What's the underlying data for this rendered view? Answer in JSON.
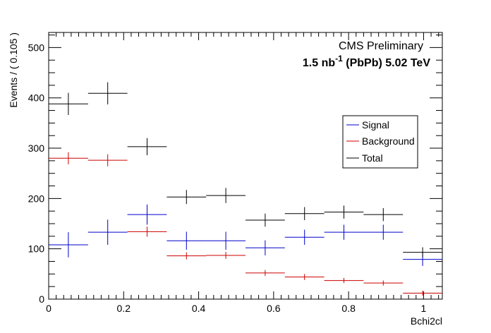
{
  "chart_data": {
    "type": "scatter",
    "xlabel": "Bchi2cl",
    "ylabel": "Events / ( 0.105 )",
    "xlim": [
      0,
      1.05
    ],
    "ylim": [
      0,
      530
    ],
    "x_ticks": [
      "0",
      "0.2",
      "0.4",
      "0.6",
      "0.8",
      "1"
    ],
    "y_ticks": [
      "0",
      "100",
      "200",
      "300",
      "400",
      "500"
    ],
    "bin_width": 0.105,
    "annotations": {
      "experiment": "CMS Preliminary",
      "lumi_prefix": "1.5 nb",
      "lumi_sup": "-1",
      "lumi_suffix": " (PbPb) 5.02 TeV"
    },
    "legend": {
      "placement": "top-right",
      "entries": [
        "Signal",
        "Background",
        "Total"
      ]
    },
    "series": [
      {
        "name": "Signal",
        "color": "#0000cc",
        "x": [
          0.0525,
          0.1575,
          0.2625,
          0.3675,
          0.4725,
          0.5775,
          0.6825,
          0.7875,
          0.8925,
          0.9975
        ],
        "y": [
          108,
          133,
          168,
          116,
          116,
          102,
          123,
          133,
          133,
          79
        ],
        "err": [
          25,
          25,
          20,
          18,
          18,
          15,
          15,
          15,
          15,
          13
        ]
      },
      {
        "name": "Background",
        "color": "#cc0000",
        "x": [
          0.0525,
          0.1575,
          0.2625,
          0.3675,
          0.4725,
          0.5775,
          0.6825,
          0.7875,
          0.8925,
          0.9975
        ],
        "y": [
          280,
          276,
          134,
          86,
          87,
          52,
          44,
          37,
          32,
          12
        ],
        "err": [
          12,
          12,
          10,
          7,
          7,
          6,
          6,
          5,
          5,
          5
        ]
      },
      {
        "name": "Total",
        "color": "#000000",
        "x": [
          0.0525,
          0.1575,
          0.2625,
          0.3675,
          0.4725,
          0.5775,
          0.6825,
          0.7875,
          0.8925,
          0.9975
        ],
        "y": [
          388,
          409,
          303,
          203,
          206,
          157,
          170,
          173,
          168,
          93
        ],
        "err": [
          22,
          22,
          17,
          14,
          15,
          13,
          13,
          13,
          13,
          10
        ]
      }
    ]
  }
}
